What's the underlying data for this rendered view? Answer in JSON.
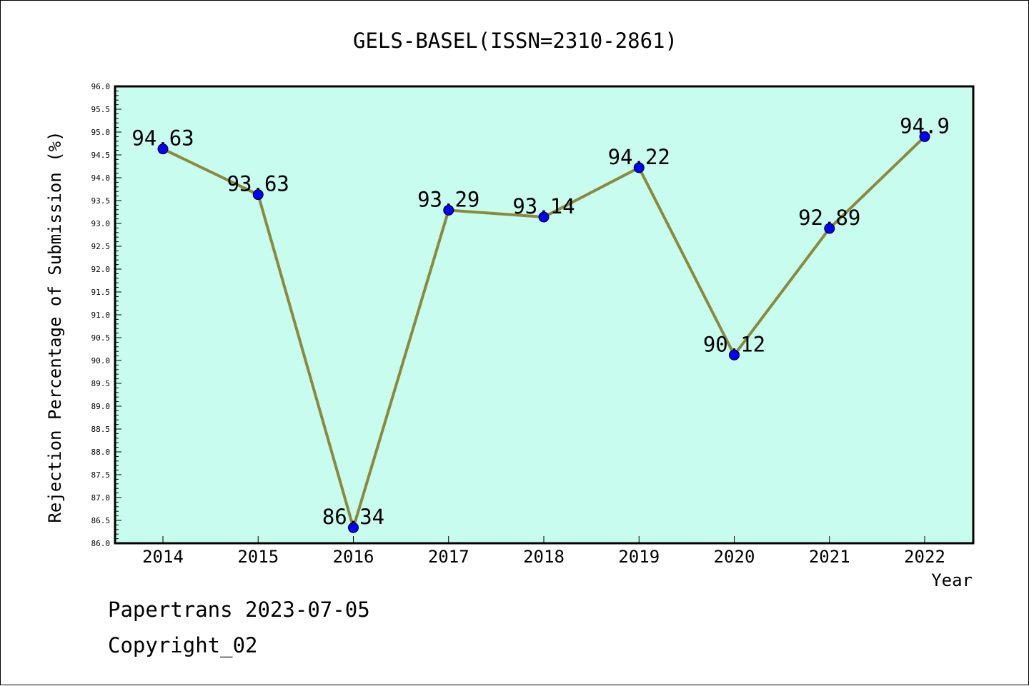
{
  "chart_data": {
    "type": "line",
    "title": "GELS-BASEL(ISSN=2310-2861)",
    "xlabel": "Year",
    "ylabel": "Rejection Percentage of Submission (%)",
    "categories": [
      "2014",
      "2015",
      "2016",
      "2017",
      "2018",
      "2019",
      "2020",
      "2021",
      "2022"
    ],
    "series": [
      {
        "values": [
          94.63,
          93.63,
          86.34,
          93.29,
          93.14,
          94.22,
          90.12,
          92.89,
          94.9
        ],
        "labels": [
          "94.63",
          "93.63",
          "86.34",
          "93.29",
          "93.14",
          "94.22",
          "90.12",
          "92.89",
          "94.9"
        ]
      }
    ],
    "ylim": [
      86.0,
      96.0
    ],
    "yticks": [
      "86.0",
      "86.5",
      "87.0",
      "87.5",
      "88.0",
      "88.5",
      "89.0",
      "89.5",
      "90.0",
      "90.5",
      "91.0",
      "91.5",
      "92.0",
      "92.5",
      "93.0",
      "93.5",
      "94.0",
      "94.5",
      "95.0",
      "95.5",
      "96.0"
    ],
    "grid": false,
    "colors": {
      "plot_background": "#c8fcee",
      "line": "#8b8a3c",
      "marker": "#0000ff"
    }
  },
  "footer": {
    "line1": "Papertrans 2023-07-05",
    "line2": "Copyright_02"
  }
}
